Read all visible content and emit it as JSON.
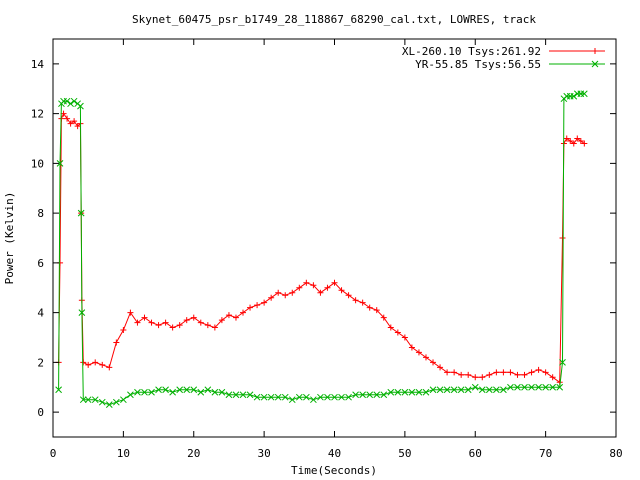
{
  "chart_data": {
    "type": "line",
    "title": "Skynet_60475_psr_b1749_28_118867_68290_cal.txt, LOWRES, track",
    "xlabel": "Time(Seconds)",
    "ylabel": "Power (Kelvin)",
    "xlim": [
      0,
      80
    ],
    "ylim": [
      -1,
      15
    ],
    "xticks": [
      0,
      10,
      20,
      30,
      40,
      50,
      60,
      70,
      80
    ],
    "yticks": [
      0,
      2,
      4,
      6,
      8,
      10,
      12,
      14
    ],
    "grid": false,
    "legend_position": "top-right",
    "series": [
      {
        "name": "XL-260.10 Tsys:261.92",
        "color": "#ff0000",
        "marker": "plus",
        "x": [
          0.8,
          1.0,
          1.2,
          1.5,
          2.0,
          2.5,
          3.0,
          3.5,
          3.9,
          4.0,
          4.1,
          4.3,
          5,
          6,
          7,
          8,
          9,
          10,
          11,
          12,
          13,
          14,
          15,
          16,
          17,
          18,
          19,
          20,
          21,
          22,
          23,
          24,
          25,
          26,
          27,
          28,
          29,
          30,
          31,
          32,
          33,
          34,
          35,
          36,
          37,
          38,
          39,
          40,
          41,
          42,
          43,
          44,
          45,
          46,
          47,
          48,
          49,
          50,
          51,
          52,
          53,
          54,
          55,
          56,
          57,
          58,
          59,
          60,
          61,
          62,
          63,
          64,
          65,
          66,
          67,
          68,
          69,
          70,
          71,
          72,
          72.4,
          72.6,
          73,
          73.5,
          74,
          74.5,
          75,
          75.5
        ],
        "values": [
          2.0,
          6.0,
          11.8,
          12.0,
          11.8,
          11.6,
          11.7,
          11.5,
          11.6,
          8.0,
          4.5,
          2.0,
          1.9,
          2.0,
          1.9,
          1.8,
          2.8,
          3.3,
          4.0,
          3.6,
          3.8,
          3.6,
          3.5,
          3.6,
          3.4,
          3.5,
          3.7,
          3.8,
          3.6,
          3.5,
          3.4,
          3.7,
          3.9,
          3.8,
          4.0,
          4.2,
          4.3,
          4.4,
          4.6,
          4.8,
          4.7,
          4.8,
          5.0,
          5.2,
          5.1,
          4.8,
          5.0,
          5.2,
          4.9,
          4.7,
          4.5,
          4.4,
          4.2,
          4.1,
          3.8,
          3.4,
          3.2,
          3.0,
          2.6,
          2.4,
          2.2,
          2.0,
          1.8,
          1.6,
          1.6,
          1.5,
          1.5,
          1.4,
          1.4,
          1.5,
          1.6,
          1.6,
          1.6,
          1.5,
          1.5,
          1.6,
          1.7,
          1.6,
          1.4,
          1.2,
          7.0,
          10.8,
          11.0,
          10.9,
          10.8,
          11.0,
          10.9,
          10.8
        ]
      },
      {
        "name": "YR-55.85 Tsys:56.55",
        "color": "#00b000",
        "marker": "x",
        "x": [
          0.8,
          1.0,
          1.2,
          1.5,
          2.0,
          2.5,
          3.0,
          3.5,
          3.9,
          4.0,
          4.1,
          4.3,
          5,
          6,
          7,
          8,
          9,
          10,
          11,
          12,
          13,
          14,
          15,
          16,
          17,
          18,
          19,
          20,
          21,
          22,
          23,
          24,
          25,
          26,
          27,
          28,
          29,
          30,
          31,
          32,
          33,
          34,
          35,
          36,
          37,
          38,
          39,
          40,
          41,
          42,
          43,
          44,
          45,
          46,
          47,
          48,
          49,
          50,
          51,
          52,
          53,
          54,
          55,
          56,
          57,
          58,
          59,
          60,
          61,
          62,
          63,
          64,
          65,
          66,
          67,
          68,
          69,
          70,
          71,
          72,
          72.4,
          72.6,
          73,
          73.5,
          74,
          74.5,
          75,
          75.5
        ],
        "values": [
          0.9,
          10.0,
          12.4,
          12.5,
          12.5,
          12.4,
          12.5,
          12.4,
          12.3,
          8.0,
          4.0,
          0.5,
          0.5,
          0.5,
          0.4,
          0.3,
          0.4,
          0.5,
          0.7,
          0.8,
          0.8,
          0.8,
          0.9,
          0.9,
          0.8,
          0.9,
          0.9,
          0.9,
          0.8,
          0.9,
          0.8,
          0.8,
          0.7,
          0.7,
          0.7,
          0.7,
          0.6,
          0.6,
          0.6,
          0.6,
          0.6,
          0.5,
          0.6,
          0.6,
          0.5,
          0.6,
          0.6,
          0.6,
          0.6,
          0.6,
          0.7,
          0.7,
          0.7,
          0.7,
          0.7,
          0.8,
          0.8,
          0.8,
          0.8,
          0.8,
          0.8,
          0.9,
          0.9,
          0.9,
          0.9,
          0.9,
          0.9,
          1.0,
          0.9,
          0.9,
          0.9,
          0.9,
          1.0,
          1.0,
          1.0,
          1.0,
          1.0,
          1.0,
          1.0,
          1.0,
          2.0,
          12.6,
          12.7,
          12.7,
          12.7,
          12.8,
          12.8,
          12.8
        ]
      }
    ]
  }
}
